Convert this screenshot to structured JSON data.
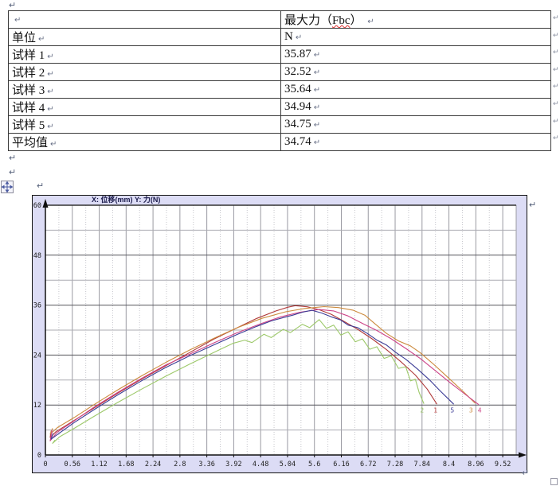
{
  "marks": {
    "paragraph": "↵",
    "row_end": "↵"
  },
  "table": {
    "spell_error": "Fbc",
    "rows": [
      {
        "label": "",
        "value": "最大力（Fbc）"
      },
      {
        "label": "单位",
        "value": "N"
      },
      {
        "label": "试样 1",
        "value": "35.87"
      },
      {
        "label": "试样 2",
        "value": "32.52"
      },
      {
        "label": "试样 3",
        "value": "35.64"
      },
      {
        "label": "试样 4",
        "value": "34.94"
      },
      {
        "label": "试样 5",
        "value": "34.75"
      },
      {
        "label": "平均值",
        "value": "34.74"
      }
    ]
  },
  "chart_data": {
    "type": "line",
    "title": "X: 位移(mm)   Y: 力(N)",
    "xlabel": "位移(mm)",
    "ylabel": "力(N)",
    "xlim": [
      0,
      9.8
    ],
    "ylim": [
      0,
      60
    ],
    "x_ticks": [
      0,
      0.56,
      1.12,
      1.68,
      2.24,
      2.8,
      3.36,
      3.92,
      4.48,
      5.04,
      5.6,
      6.16,
      6.72,
      7.28,
      7.84,
      8.4,
      8.96,
      9.52
    ],
    "x_tick_labels": [
      "0",
      "0.56",
      "1.12",
      "1.68",
      "2.24",
      "2.8",
      "3.36",
      "3.92",
      "4.48",
      "5.04",
      "5.6",
      "6.16",
      "6.72",
      "7.28",
      "7.84",
      "8.4",
      "8.96",
      "9.52"
    ],
    "y_ticks": [
      0,
      12,
      24,
      36,
      48,
      60
    ],
    "x_major_step": 0.56,
    "x_minor_step": 0.28,
    "y_major_step": 12,
    "y_minor_step": 6,
    "colors": {
      "chart_bg": "#dcdcf5",
      "plot_bg": "#ffffff",
      "grid_major_v": "#9a9aa2",
      "grid_minor_v": "#c6c6cc",
      "grid_major_h": "#55555c",
      "grid_minor_h": "#ababb2",
      "axis": "#101010",
      "title": "#1a1a4a",
      "tick_label": "#202020"
    },
    "grid": true,
    "legend_position": "none",
    "series": [
      {
        "name": "1",
        "max_force": 35.87,
        "color": "#b03a3a",
        "points": [
          [
            0.12,
            5.8
          ],
          [
            0.1,
            4.2
          ],
          [
            0.22,
            5.6
          ],
          [
            0.5,
            7.6
          ],
          [
            1.0,
            11.2
          ],
          [
            1.5,
            14.8
          ],
          [
            2.0,
            18.2
          ],
          [
            2.5,
            21.4
          ],
          [
            3.0,
            24.6
          ],
          [
            3.5,
            27.8
          ],
          [
            4.0,
            30.6
          ],
          [
            4.4,
            32.8
          ],
          [
            4.8,
            34.6
          ],
          [
            5.05,
            35.5
          ],
          [
            5.2,
            35.87
          ],
          [
            5.45,
            35.6
          ],
          [
            5.7,
            34.9
          ],
          [
            5.95,
            33.8
          ],
          [
            6.2,
            32.2
          ],
          [
            6.5,
            30.2
          ],
          [
            6.8,
            27.9
          ],
          [
            7.1,
            25.3
          ],
          [
            7.4,
            22.4
          ],
          [
            7.7,
            19.2
          ],
          [
            7.95,
            15.8
          ],
          [
            8.15,
            12.2
          ]
        ]
      },
      {
        "name": "2",
        "max_force": 32.52,
        "color": "#9dc96a",
        "points": [
          [
            0.2,
            3.6
          ],
          [
            0.15,
            2.8
          ],
          [
            0.3,
            4.4
          ],
          [
            0.6,
            6.4
          ],
          [
            1.0,
            9.2
          ],
          [
            1.5,
            12.6
          ],
          [
            2.0,
            15.8
          ],
          [
            2.5,
            18.9
          ],
          [
            3.0,
            21.8
          ],
          [
            3.5,
            24.6
          ],
          [
            3.9,
            26.8
          ],
          [
            4.15,
            27.6
          ],
          [
            4.3,
            27.0
          ],
          [
            4.55,
            29.0
          ],
          [
            4.7,
            28.2
          ],
          [
            4.95,
            30.2
          ],
          [
            5.1,
            29.4
          ],
          [
            5.35,
            31.4
          ],
          [
            5.5,
            30.6
          ],
          [
            5.7,
            32.52
          ],
          [
            5.85,
            30.4
          ],
          [
            6.0,
            31.2
          ],
          [
            6.15,
            28.8
          ],
          [
            6.3,
            29.6
          ],
          [
            6.45,
            27.2
          ],
          [
            6.6,
            27.9
          ],
          [
            6.75,
            25.4
          ],
          [
            6.9,
            26.0
          ],
          [
            7.05,
            23.2
          ],
          [
            7.2,
            23.8
          ],
          [
            7.35,
            20.8
          ],
          [
            7.5,
            21.2
          ],
          [
            7.6,
            17.8
          ],
          [
            7.7,
            18.2
          ],
          [
            7.78,
            15.0
          ],
          [
            7.88,
            12.3
          ]
        ]
      },
      {
        "name": "3",
        "max_force": 35.64,
        "color": "#cc8a3d",
        "points": [
          [
            0.15,
            6.4
          ],
          [
            0.1,
            5.0
          ],
          [
            0.25,
            6.6
          ],
          [
            0.6,
            9.0
          ],
          [
            1.0,
            12.0
          ],
          [
            1.5,
            15.6
          ],
          [
            2.0,
            19.0
          ],
          [
            2.5,
            22.2
          ],
          [
            3.0,
            25.2
          ],
          [
            3.5,
            28.0
          ],
          [
            4.0,
            30.6
          ],
          [
            4.5,
            32.8
          ],
          [
            5.0,
            34.4
          ],
          [
            5.4,
            35.2
          ],
          [
            5.8,
            35.64
          ],
          [
            6.1,
            35.4
          ],
          [
            6.4,
            34.8
          ],
          [
            6.65,
            33.6
          ],
          [
            6.85,
            31.6
          ],
          [
            7.1,
            29.2
          ],
          [
            7.35,
            27.4
          ],
          [
            7.6,
            26.2
          ],
          [
            7.8,
            24.6
          ],
          [
            8.1,
            21.6
          ],
          [
            8.4,
            18.4
          ],
          [
            8.7,
            15.2
          ],
          [
            8.95,
            12.4
          ]
        ]
      },
      {
        "name": "4",
        "max_force": 34.94,
        "color": "#cc4488",
        "points": [
          [
            0.14,
            6.0
          ],
          [
            0.1,
            3.4
          ],
          [
            0.24,
            5.4
          ],
          [
            0.6,
            8.2
          ],
          [
            1.0,
            11.4
          ],
          [
            1.5,
            15.0
          ],
          [
            2.0,
            18.4
          ],
          [
            2.5,
            21.6
          ],
          [
            3.0,
            24.2
          ],
          [
            3.5,
            26.9
          ],
          [
            4.0,
            29.4
          ],
          [
            4.5,
            31.6
          ],
          [
            4.9,
            33.2
          ],
          [
            5.3,
            34.3
          ],
          [
            5.7,
            34.94
          ],
          [
            6.0,
            34.6
          ],
          [
            6.3,
            33.4
          ],
          [
            6.6,
            31.6
          ],
          [
            6.9,
            29.9
          ],
          [
            7.2,
            27.9
          ],
          [
            7.5,
            25.6
          ],
          [
            7.8,
            23.2
          ],
          [
            8.1,
            20.4
          ],
          [
            8.4,
            17.6
          ],
          [
            8.7,
            14.9
          ],
          [
            9.02,
            12.1
          ]
        ]
      },
      {
        "name": "5",
        "max_force": 34.75,
        "color": "#3c3c96",
        "points": [
          [
            0.16,
            5.2
          ],
          [
            0.12,
            3.8
          ],
          [
            0.26,
            5.0
          ],
          [
            0.6,
            7.8
          ],
          [
            1.0,
            10.8
          ],
          [
            1.5,
            14.4
          ],
          [
            2.0,
            17.8
          ],
          [
            2.5,
            21.0
          ],
          [
            3.0,
            23.8
          ],
          [
            3.5,
            26.4
          ],
          [
            4.0,
            29.0
          ],
          [
            4.4,
            30.9
          ],
          [
            4.7,
            32.2
          ],
          [
            4.95,
            33.0
          ],
          [
            5.15,
            33.6
          ],
          [
            5.35,
            34.3
          ],
          [
            5.55,
            34.75
          ],
          [
            5.75,
            34.1
          ],
          [
            5.95,
            33.2
          ],
          [
            6.15,
            32.4
          ],
          [
            6.3,
            31.2
          ],
          [
            6.5,
            30.6
          ],
          [
            6.7,
            29.2
          ],
          [
            6.9,
            27.6
          ],
          [
            7.1,
            26.4
          ],
          [
            7.3,
            24.6
          ],
          [
            7.5,
            23.0
          ],
          [
            7.75,
            20.6
          ],
          [
            8.0,
            18.0
          ],
          [
            8.2,
            15.6
          ],
          [
            8.5,
            12.2
          ]
        ]
      }
    ],
    "end_labels": [
      {
        "text": "2",
        "x": 7.84,
        "y": 10.2,
        "color": "#9dc96a"
      },
      {
        "text": "1",
        "x": 8.12,
        "y": 10.2,
        "color": "#b03a3a"
      },
      {
        "text": "5",
        "x": 8.47,
        "y": 10.2,
        "color": "#3c3c96"
      },
      {
        "text": "3",
        "x": 8.86,
        "y": 10.2,
        "color": "#cc8a3d"
      },
      {
        "text": "4",
        "x": 9.04,
        "y": 10.2,
        "color": "#cc4488"
      }
    ]
  }
}
